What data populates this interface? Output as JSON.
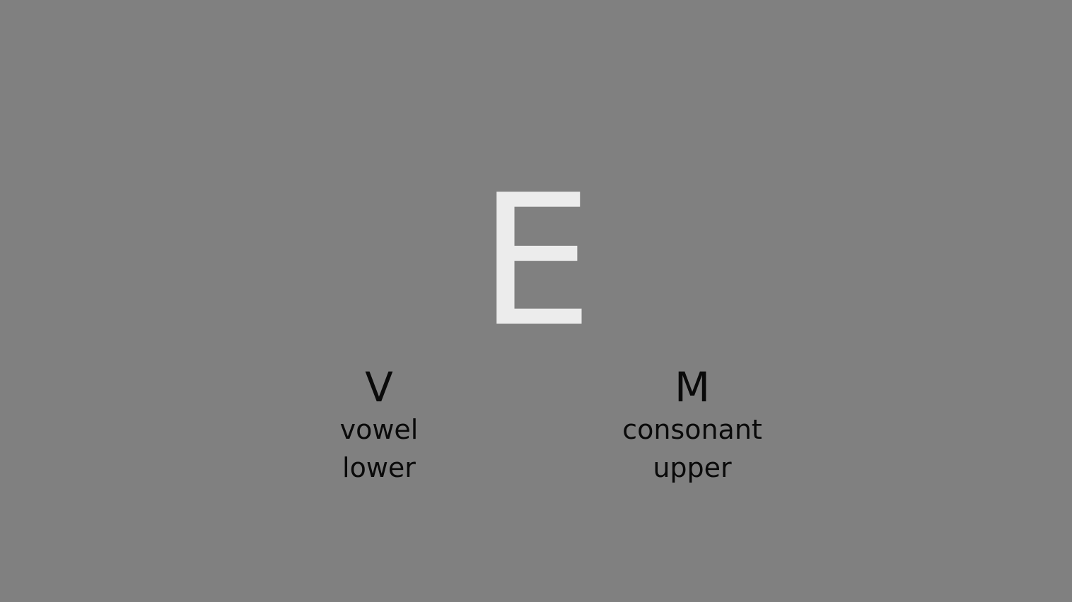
{
  "stimulus": {
    "letter": "E",
    "color": "#ececec"
  },
  "background_color": "#808080",
  "text_color": "#0a0a0a",
  "responses": [
    {
      "key": "V",
      "line1": "vowel",
      "line2": "lower"
    },
    {
      "key": "M",
      "line1": "consonant",
      "line2": "upper"
    }
  ]
}
